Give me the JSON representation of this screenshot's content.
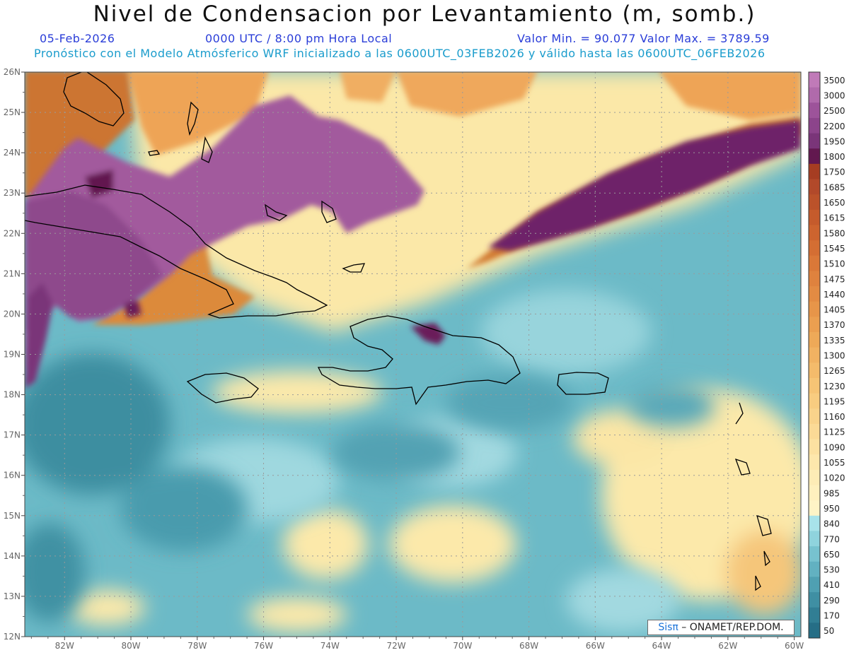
{
  "header": {
    "title": "Nivel de Condensacion por Levantamiento (m, somb.)",
    "date": "05-Feb-2026",
    "time": "0000 UTC / 8:00 pm Hora Local",
    "min_max": "Valor Min. = 90.077   Valor Max. = 3789.59",
    "forecast": "Pronóstico con el Modelo Atmósferico WRF inicializado a las 0600UTC_03FEB2026 y válido hasta las  0600UTC_06FEB2026"
  },
  "map": {
    "lon_labels": [
      "82W",
      "80W",
      "78W",
      "76W",
      "74W",
      "72W",
      "70W",
      "68W",
      "66W",
      "64W",
      "62W",
      "60W"
    ],
    "lat_labels": [
      "26N",
      "25N",
      "24N",
      "23N",
      "22N",
      "21N",
      "20N",
      "19N",
      "18N",
      "17N",
      "16N",
      "15N",
      "14N",
      "13N",
      "12N"
    ],
    "lon_range": [
      -83.2,
      -59.8
    ],
    "lat_range": [
      12,
      26
    ],
    "colors": {
      "water_low": "#4ea6b4",
      "water_mid": "#8fcfd8",
      "pale": "#fdf2b0",
      "orange": "#e8a34a",
      "dark_orange": "#c86a2a",
      "purple": "#a35ba0",
      "dark_purple": "#6b2060",
      "coast": "#000000"
    }
  },
  "legend": {
    "levels": [
      "3500",
      "3000",
      "2500",
      "2200",
      "1950",
      "1800",
      "1750",
      "1685",
      "1650",
      "1615",
      "1580",
      "1545",
      "1510",
      "1475",
      "1440",
      "1405",
      "1370",
      "1335",
      "1300",
      "1265",
      "1230",
      "1195",
      "1160",
      "1125",
      "1090",
      "1055",
      "1020",
      "985",
      "950",
      "840",
      "770",
      "650",
      "530",
      "410",
      "290",
      "170",
      "50"
    ],
    "colors": [
      "#c07ab8",
      "#b06aab",
      "#9d539a",
      "#8c448b",
      "#7a3579",
      "#62184f",
      "#a63d22",
      "#b2492a",
      "#bb522a",
      "#c55b2c",
      "#cd642f",
      "#d46e33",
      "#da7838",
      "#df823e",
      "#e38b43",
      "#e79549",
      "#eb9f50",
      "#eea958",
      "#f1b262",
      "#f4bb6b",
      "#f6c475",
      "#f8cc80",
      "#f9d38b",
      "#fbda96",
      "#fce1a1",
      "#fde7ac",
      "#fdecb6",
      "#fef0be",
      "#fef4c6",
      "#a8e3ea",
      "#8fd3dd",
      "#77c2cf",
      "#62b1c1",
      "#4fa0b2",
      "#3f8fa3",
      "#317e94",
      "#266e86"
    ]
  },
  "footer": {
    "brand": "Sisπ",
    "org": " – ONAMET/REP.DOM."
  }
}
